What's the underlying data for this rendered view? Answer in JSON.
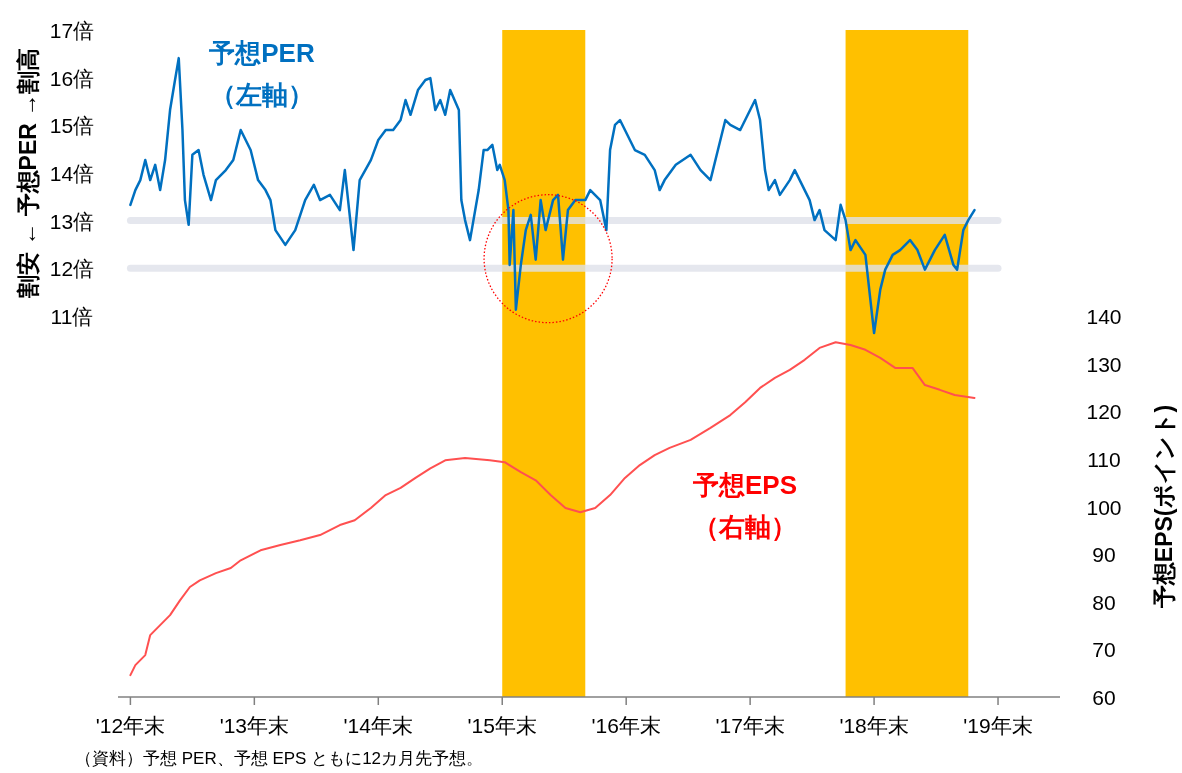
{
  "chart_data": {
    "type": "line",
    "ylabel": "割安 ← 予想PER →割高",
    "y2label": "予想EPS(ポイント)",
    "annotations": [
      "（資料）予想 PER、予想 EPS ともに12カ月先予想。"
    ],
    "xlim": [
      11.9,
      19.5
    ],
    "xticks": [
      {
        "value": 12,
        "label": "'12年末"
      },
      {
        "value": 13,
        "label": "'13年末"
      },
      {
        "value": 14,
        "label": "'14年末"
      },
      {
        "value": 15,
        "label": "'15年末"
      },
      {
        "value": 16,
        "label": "'16年末"
      },
      {
        "value": 17,
        "label": "'17年末"
      },
      {
        "value": 18,
        "label": "'18年末"
      },
      {
        "value": 19,
        "label": "'19年末"
      }
    ],
    "ylim": [
      3,
      17
    ],
    "yticks": [
      {
        "value": 11,
        "label": "11倍"
      },
      {
        "value": 12,
        "label": "12倍"
      },
      {
        "value": 13,
        "label": "13倍"
      },
      {
        "value": 14,
        "label": "14倍"
      },
      {
        "value": 15,
        "label": "15倍"
      },
      {
        "value": 16,
        "label": "16倍"
      },
      {
        "value": 17,
        "label": "17倍"
      }
    ],
    "y2lim": [
      60,
      140
    ],
    "y2ticks": [
      60,
      70,
      80,
      90,
      100,
      110,
      120,
      130,
      140
    ],
    "tick_labels": "xy",
    "grid": false,
    "line_style": "solid",
    "bands": [
      {
        "axis": "x",
        "from": 15,
        "to": 15.67,
        "color": "#ffc000"
      },
      {
        "axis": "x",
        "from": 17.77,
        "to": 18.76,
        "color": "#ffc000"
      }
    ],
    "ref_lines": [
      {
        "axis": "y",
        "value": 12,
        "color": "#dfe2ea"
      },
      {
        "axis": "y",
        "value": 13,
        "color": "#dfe2ea"
      }
    ],
    "series": [
      {
        "name": "予想PER（左軸）",
        "color": "#0070c0",
        "x": [
          12,
          12.04,
          12.08,
          12.12,
          12.16,
          12.2,
          12.24,
          12.28,
          12.32,
          12.36,
          12.39,
          12.42,
          12.44,
          12.47,
          12.5,
          12.55,
          12.59,
          12.65,
          12.69,
          12.77,
          12.83,
          12.89,
          12.97,
          13.03,
          13.09,
          13.13,
          13.17,
          13.25,
          13.33,
          13.41,
          13.48,
          13.53,
          13.61,
          13.69,
          13.73,
          13.8,
          13.85,
          13.94,
          14,
          14.06,
          14.12,
          14.18,
          14.22,
          14.26,
          14.32,
          14.38,
          14.42,
          14.46,
          14.5,
          14.54,
          14.58,
          14.65,
          14.67,
          14.7,
          14.74,
          14.81,
          14.85,
          14.88,
          14.92,
          14.96,
          14.98,
          15.02,
          15.05,
          15.06,
          15.09,
          15.11,
          15.15,
          15.19,
          15.23,
          15.27,
          15.31,
          15.35,
          15.41,
          15.45,
          15.49,
          15.53,
          15.59,
          15.67,
          15.71,
          15.79,
          15.84,
          15.87,
          15.91,
          15.95,
          15.99,
          16.07,
          16.15,
          16.23,
          16.27,
          16.31,
          16.4,
          16.52,
          16.6,
          16.68,
          16.74,
          16.8,
          16.84,
          16.92,
          17,
          17.04,
          17.08,
          17.12,
          17.15,
          17.2,
          17.24,
          17.32,
          17.36,
          17.4,
          17.48,
          17.52,
          17.56,
          17.6,
          17.69,
          17.73,
          17.77,
          17.81,
          17.85,
          17.93,
          17.97,
          18,
          18.05,
          18.09,
          18.15,
          18.21,
          18.29,
          18.35,
          18.41,
          18.49,
          18.57,
          18.64,
          18.67,
          18.72,
          18.76,
          18.81
        ],
        "values": [
          13.33,
          13.64,
          13.85,
          14.27,
          13.85,
          14.17,
          13.64,
          14.27,
          15.32,
          15.95,
          16.41,
          14.9,
          13.43,
          12.91,
          14.38,
          14.48,
          13.96,
          13.43,
          13.85,
          14.06,
          14.27,
          14.9,
          14.48,
          13.85,
          13.64,
          13.43,
          12.8,
          12.49,
          12.8,
          13.43,
          13.75,
          13.43,
          13.54,
          13.22,
          14.06,
          12.38,
          13.85,
          14.27,
          14.69,
          14.9,
          14.9,
          15.11,
          15.53,
          15.22,
          15.74,
          15.95,
          15.99,
          15.32,
          15.53,
          15.22,
          15.74,
          15.32,
          13.43,
          13.01,
          12.59,
          13.64,
          14.48,
          14.48,
          14.59,
          14.06,
          14.17,
          13.85,
          13.22,
          12.07,
          13.22,
          11.13,
          12.07,
          12.8,
          13.12,
          12.18,
          13.43,
          12.8,
          13.43,
          13.54,
          12.18,
          13.22,
          13.43,
          13.43,
          13.64,
          13.43,
          12.8,
          14.48,
          15.01,
          15.11,
          14.9,
          14.48,
          14.38,
          14.06,
          13.64,
          13.85,
          14.17,
          14.38,
          14.06,
          13.85,
          14.48,
          15.11,
          15.01,
          14.9,
          15.32,
          15.53,
          15.11,
          14.06,
          13.64,
          13.85,
          13.54,
          13.85,
          14.06,
          13.85,
          13.43,
          13.01,
          13.22,
          12.8,
          12.59,
          13.33,
          13.01,
          12.38,
          12.59,
          12.28,
          11.34,
          10.64,
          11.55,
          11.97,
          12.28,
          12.38,
          12.59,
          12.38,
          11.97,
          12.38,
          12.7,
          12.07,
          11.97,
          12.8,
          13.01,
          13.22
        ]
      },
      {
        "name": "予想EPS（右軸）",
        "color": "#ff5050",
        "axis": "y2",
        "x": [
          12,
          12.04,
          12.12,
          12.16,
          12.24,
          12.32,
          12.4,
          12.48,
          12.56,
          12.69,
          12.81,
          12.89,
          13.05,
          13.21,
          13.37,
          13.53,
          13.69,
          13.81,
          13.94,
          14.06,
          14.18,
          14.3,
          14.42,
          14.54,
          14.7,
          14.9,
          15.02,
          15.15,
          15.27,
          15.39,
          15.51,
          15.63,
          15.75,
          15.87,
          15.99,
          16.11,
          16.23,
          16.35,
          16.52,
          16.68,
          16.84,
          16.96,
          17.08,
          17.2,
          17.32,
          17.44,
          17.56,
          17.69,
          17.81,
          17.93,
          18.05,
          18.17,
          18.31,
          18.41,
          18.53,
          18.65,
          18.81
        ],
        "values": [
          64.6,
          66.7,
          68.8,
          73,
          75.1,
          77.2,
          80.3,
          83.1,
          84.5,
          86,
          87.1,
          88.7,
          90.8,
          91.9,
          92.9,
          94,
          96.1,
          97.1,
          99.7,
          102.4,
          103.9,
          106,
          108,
          109.7,
          110.2,
          109.7,
          109.3,
          107.2,
          105.5,
          102.4,
          99.7,
          98.8,
          99.7,
          102.4,
          106,
          108.7,
          110.8,
          112.3,
          114,
          116.5,
          119.2,
          121.9,
          124.9,
          127,
          128.7,
          130.8,
          133.3,
          134.5,
          133.9,
          132.9,
          131.2,
          129.1,
          129.1,
          125.5,
          124.5,
          123.4,
          122.8
        ]
      }
    ]
  }
}
